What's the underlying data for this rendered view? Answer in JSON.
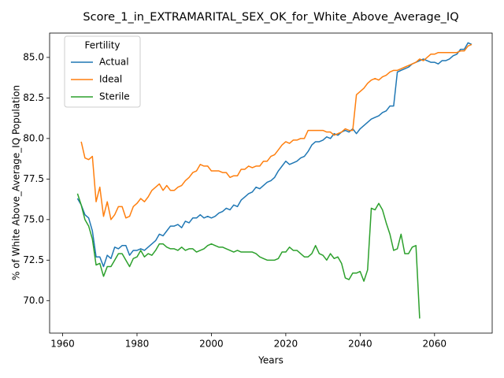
{
  "chart_data": {
    "type": "line",
    "title": "Score_1_in_EXTRAMARITAL_SEX_OK_for_White_Above_Average_IQ",
    "xlabel": "Years",
    "ylabel": "% of White Above_Average_IQ Population",
    "legend_title": "Fertility",
    "legend": "upper left",
    "grid": false,
    "xlim": [
      1956.5,
      2075.5
    ],
    "ylim": [
      68.0,
      86.5
    ],
    "xticks": [
      1960,
      1980,
      2000,
      2020,
      2040,
      2060
    ],
    "yticks": [
      {
        "value": 70,
        "label": "70.0"
      },
      72.5,
      {
        "value": 75,
        "label": "75.0"
      },
      77.5,
      {
        "value": 80,
        "label": "80.0"
      },
      82.5,
      {
        "value": 85,
        "label": "85.0"
      }
    ],
    "x": [
      1964,
      1965,
      1966,
      1967,
      1968,
      1969,
      1970,
      1971,
      1972,
      1973,
      1974,
      1975,
      1976,
      1977,
      1978,
      1979,
      1980,
      1981,
      1982,
      1983,
      1984,
      1985,
      1986,
      1987,
      1988,
      1989,
      1990,
      1991,
      1992,
      1993,
      1994,
      1995,
      1996,
      1997,
      1998,
      1999,
      2000,
      2001,
      2002,
      2003,
      2004,
      2005,
      2006,
      2007,
      2008,
      2009,
      2010,
      2011,
      2012,
      2013,
      2014,
      2015,
      2016,
      2017,
      2018,
      2019,
      2020,
      2021,
      2022,
      2023,
      2024,
      2025,
      2026,
      2027,
      2028,
      2029,
      2030,
      2031,
      2032,
      2033,
      2034,
      2035,
      2036,
      2037,
      2038,
      2039,
      2040,
      2041,
      2042,
      2043,
      2044,
      2045,
      2046,
      2047,
      2048,
      2049,
      2050,
      2051,
      2052,
      2053,
      2054,
      2055,
      2056,
      2057,
      2058,
      2059,
      2060,
      2061,
      2062,
      2063,
      2064,
      2065,
      2066,
      2067,
      2068,
      2069,
      2070
    ],
    "series": [
      {
        "name": "Actual",
        "color": "#1f77b4",
        "values": [
          76.3,
          75.9,
          75.3,
          75.1,
          74.3,
          72.7,
          72.7,
          72.1,
          72.8,
          72.6,
          73.3,
          73.2,
          73.4,
          73.4,
          72.8,
          73.1,
          73.1,
          73.2,
          73.1,
          73.3,
          73.5,
          73.7,
          74.1,
          74.0,
          74.3,
          74.6,
          74.6,
          74.7,
          74.5,
          74.9,
          74.8,
          75.1,
          75.1,
          75.3,
          75.1,
          75.2,
          75.1,
          75.2,
          75.4,
          75.5,
          75.7,
          75.6,
          75.9,
          75.8,
          76.2,
          76.4,
          76.6,
          76.7,
          77.0,
          76.9,
          77.1,
          77.3,
          77.4,
          77.6,
          78.0,
          78.3,
          78.6,
          78.4,
          78.5,
          78.6,
          78.8,
          78.9,
          79.2,
          79.6,
          79.8,
          79.8,
          79.9,
          80.1,
          80.0,
          80.3,
          80.2,
          80.4,
          80.5,
          80.4,
          80.6,
          80.3,
          80.6,
          80.8,
          81.0,
          81.2,
          81.3,
          81.4,
          81.6,
          81.7,
          82.0,
          82.0,
          84.1,
          84.2,
          84.3,
          84.4,
          84.6,
          84.7,
          84.8,
          84.9,
          84.8,
          84.7,
          84.7,
          84.6,
          84.8,
          84.8,
          84.9,
          85.1,
          85.2,
          85.5,
          85.5,
          85.9,
          85.8
        ]
      },
      {
        "name": "Ideal",
        "color": "#ff7f0e",
        "values": [
          null,
          79.8,
          78.8,
          78.7,
          78.9,
          76.1,
          77.0,
          75.2,
          76.1,
          75.0,
          75.3,
          75.8,
          75.8,
          75.1,
          75.2,
          75.8,
          76.0,
          76.3,
          76.1,
          76.4,
          76.8,
          77.0,
          77.2,
          76.8,
          77.1,
          76.8,
          76.8,
          77.0,
          77.1,
          77.4,
          77.6,
          77.9,
          78.0,
          78.4,
          78.3,
          78.3,
          78.0,
          78.0,
          78.0,
          77.9,
          77.9,
          77.6,
          77.7,
          77.7,
          78.1,
          78.1,
          78.3,
          78.2,
          78.3,
          78.3,
          78.6,
          78.6,
          78.9,
          79.0,
          79.3,
          79.6,
          79.8,
          79.7,
          79.9,
          79.9,
          80.0,
          80.0,
          80.5,
          80.5,
          80.5,
          80.5,
          80.5,
          80.4,
          80.4,
          80.2,
          80.3,
          80.4,
          80.6,
          80.5,
          80.5,
          82.7,
          82.9,
          83.1,
          83.4,
          83.6,
          83.7,
          83.6,
          83.8,
          83.9,
          84.1,
          84.2,
          84.2,
          84.3,
          84.4,
          84.5,
          84.6,
          84.7,
          84.9,
          84.8,
          85.0,
          85.2,
          85.2,
          85.3,
          85.3,
          85.3,
          85.3,
          85.3,
          85.3,
          85.4,
          85.4,
          85.7,
          85.8
        ]
      },
      {
        "name": "Sterile",
        "color": "#2ca02c",
        "values": [
          76.6,
          75.9,
          75.0,
          74.6,
          73.8,
          72.2,
          72.3,
          71.5,
          72.1,
          72.1,
          72.5,
          72.9,
          72.9,
          72.5,
          72.1,
          72.6,
          72.7,
          73.1,
          72.7,
          72.9,
          72.8,
          73.1,
          73.5,
          73.5,
          73.3,
          73.2,
          73.2,
          73.1,
          73.3,
          73.1,
          73.2,
          73.2,
          73.0,
          73.1,
          73.2,
          73.4,
          73.5,
          73.4,
          73.3,
          73.3,
          73.2,
          73.1,
          73.0,
          73.1,
          73.0,
          73.0,
          73.0,
          73.0,
          72.9,
          72.7,
          72.6,
          72.5,
          72.5,
          72.5,
          72.6,
          73.0,
          73.0,
          73.3,
          73.1,
          73.1,
          72.9,
          72.7,
          72.7,
          72.9,
          73.4,
          72.9,
          72.8,
          72.5,
          72.9,
          72.6,
          72.7,
          72.3,
          71.4,
          71.3,
          71.7,
          71.7,
          71.8,
          71.2,
          71.9,
          75.7,
          75.6,
          76.0,
          75.6,
          74.8,
          74.1,
          73.1,
          73.2,
          74.1,
          72.9,
          72.9,
          73.3,
          73.4,
          68.9,
          null,
          null,
          null,
          null,
          null,
          null,
          null,
          null,
          null,
          null,
          null,
          null,
          null,
          null
        ]
      }
    ]
  }
}
